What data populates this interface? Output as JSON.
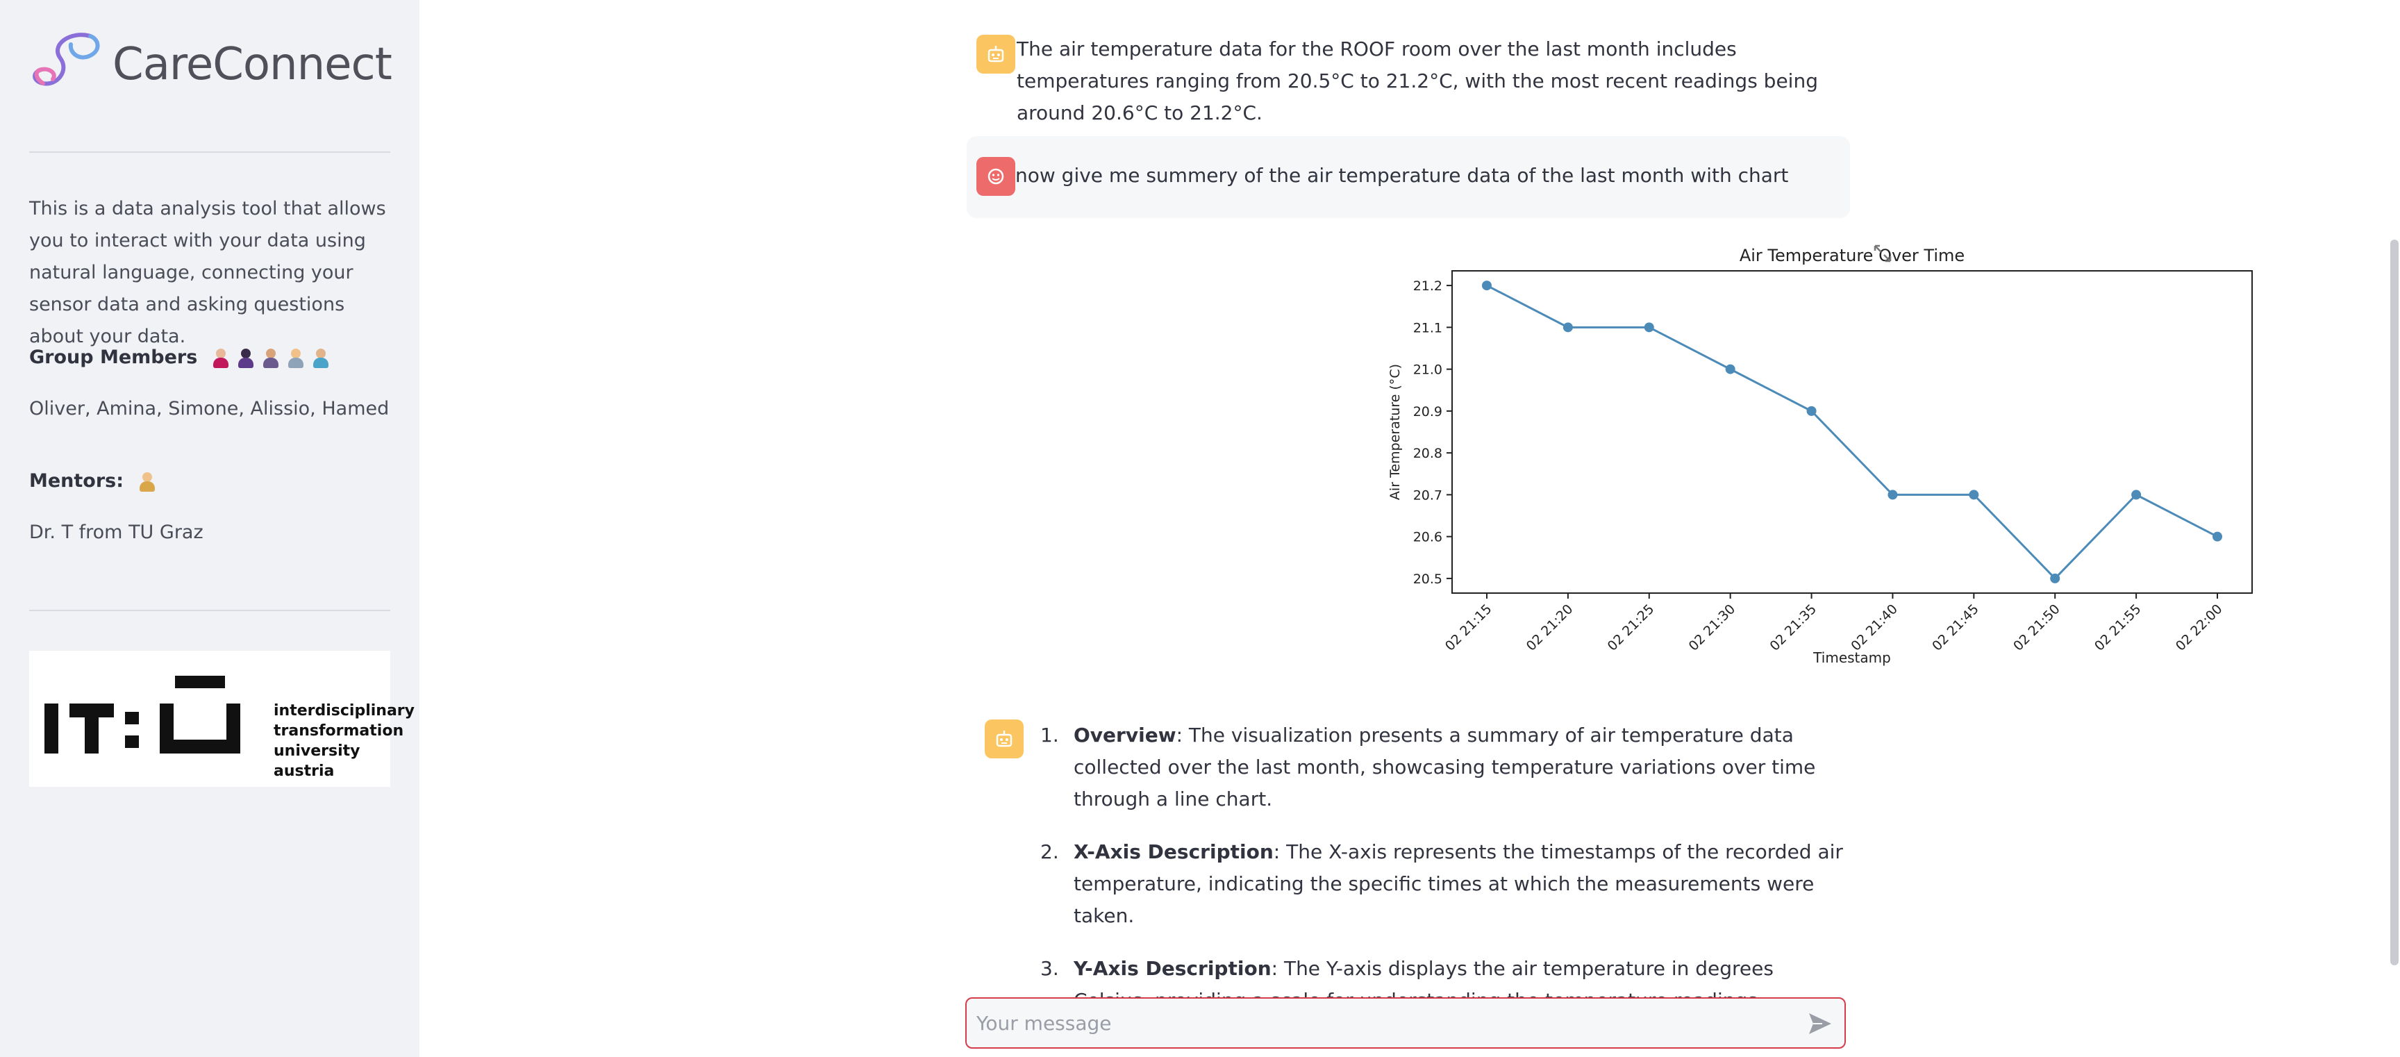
{
  "sidebar": {
    "logo_text": "CareConnect",
    "description": "This is a data analysis tool that allows you to interact with your data using natural language, connecting your sensor data and asking questions about your data.",
    "group_label": "Group Members",
    "members": "Oliver, Amina, Simone, Alissio, Hamed",
    "mentors_label": "Mentors:",
    "mentor": "Dr. T from TU Graz",
    "uni_lines": [
      "interdisciplinary",
      "transformation",
      "university austria"
    ]
  },
  "chat": {
    "bot_message_1": "The air temperature data for the ROOF room over the last month includes temperatures ranging from 20.5°C to 21.2°C, with the most recent readings being around 20.6°C to 21.2°C.",
    "user_message": "now give me summery of the air temperature data of the last month with chart",
    "answer_items": [
      {
        "num": "1.",
        "title": "Overview",
        "text": ": The visualization presents a summary of air temperature data collected over the last month, showcasing temperature variations over time through a line chart."
      },
      {
        "num": "2.",
        "title": "X-Axis Description",
        "text": ": The X-axis represents the timestamps of the recorded air temperature, indicating the specific times at which the measurements were taken."
      },
      {
        "num": "3.",
        "title": "Y-Axis Description",
        "text": ": The Y-axis displays the air temperature in degrees Celsius, providing a scale for understanding the temperature readings."
      }
    ]
  },
  "input": {
    "placeholder": "Your message"
  },
  "icons": {
    "bot_avatar": "robot-icon",
    "user_avatar": "user-face-icon",
    "send": "send-icon",
    "expand": "expand-icon"
  },
  "colors": {
    "accent": "#d63c4a",
    "bot": "#fbc561",
    "user": "#ee6b6b",
    "line": "#4c8ab8"
  },
  "chart_data": {
    "type": "line",
    "title": "Air Temperature Over Time",
    "xlabel": "Timestamp",
    "ylabel": "Air Temperature (°C)",
    "categories": [
      "02 21:15",
      "02 21:20",
      "02 21:25",
      "02 21:30",
      "02 21:35",
      "02 21:40",
      "02 21:45",
      "02 21:50",
      "02 21:55",
      "02 22:00"
    ],
    "values": [
      21.2,
      21.1,
      21.1,
      21.0,
      20.9,
      20.7,
      20.7,
      20.5,
      20.7,
      20.6
    ],
    "yticks": [
      "20.5",
      "20.6",
      "20.7",
      "20.8",
      "20.9",
      "21.0",
      "21.1",
      "21.2"
    ],
    "ylim": [
      20.465,
      21.235
    ],
    "grid": false,
    "legend": "none"
  }
}
